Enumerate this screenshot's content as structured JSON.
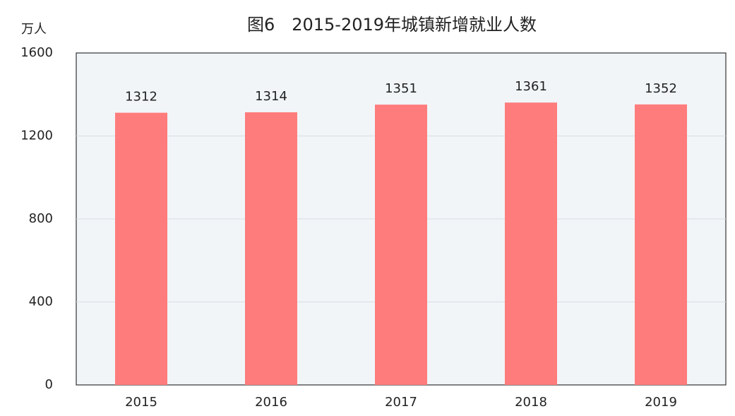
{
  "chart_data": {
    "type": "bar",
    "title": "图6　2015-2019年城镇新增就业人数",
    "y_label": "万人",
    "categories": [
      "2015",
      "2016",
      "2017",
      "2018",
      "2019"
    ],
    "values": [
      1312,
      1314,
      1351,
      1361,
      1352
    ],
    "color": "#ff7c7c",
    "ylim": [
      0,
      1600
    ],
    "yticks": [
      0,
      400,
      800,
      1200,
      1600
    ],
    "grid": true
  }
}
